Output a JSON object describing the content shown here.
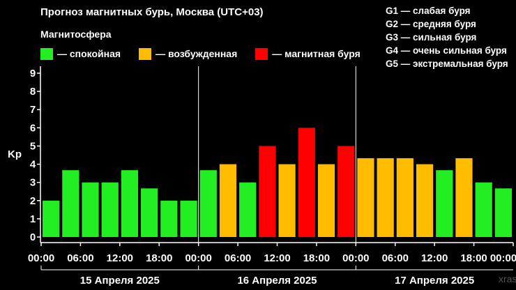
{
  "title": "Прогноз магнитных бурь, Москва (UTC+03)",
  "subtitle": "Магнитосфера",
  "legend": [
    {
      "label": "— спокойная",
      "color": "#22ee22"
    },
    {
      "label": "— возбужденная",
      "color": "#ffbb00"
    },
    {
      "label": "— магнитная буря",
      "color": "#ff0000"
    }
  ],
  "g_levels": [
    "G1 — слабая буря",
    "G2 — средняя буря",
    "G3 — сильная буря",
    "G4 — очень сильная буря",
    "G5 — экстремальная буря"
  ],
  "watermark": "xras",
  "chart_data": {
    "type": "bar",
    "ylabel": "Kp",
    "ylim": [
      0,
      9
    ],
    "yticks": [
      0,
      1,
      2,
      3,
      4,
      5,
      6,
      7,
      8,
      9
    ],
    "grid": false,
    "days": [
      "15 Апреля 2025",
      "16 Апреля 2025",
      "17 Апреля 2025"
    ],
    "time_ticks": [
      "00:00",
      "06:00",
      "12:00",
      "18:00",
      "00:00",
      "06:00",
      "12:00",
      "18:00",
      "00:00",
      "06:00",
      "12:00",
      "18:00",
      "00:00"
    ],
    "values": [
      2,
      3.67,
      3,
      3,
      3.67,
      2.67,
      2,
      2,
      3.67,
      4,
      3,
      5,
      4,
      6,
      4,
      5,
      4.33,
      4.33,
      4.33,
      4,
      3.67,
      4.33,
      3,
      2.67
    ],
    "levels": [
      "calm",
      "calm",
      "calm",
      "calm",
      "calm",
      "calm",
      "calm",
      "calm",
      "calm",
      "active",
      "calm",
      "storm",
      "active",
      "storm",
      "active",
      "storm",
      "active",
      "active",
      "active",
      "active",
      "calm",
      "active",
      "calm",
      "calm"
    ],
    "colors": {
      "calm": "#22ee22",
      "active": "#ffbb00",
      "storm": "#ff0000"
    }
  }
}
